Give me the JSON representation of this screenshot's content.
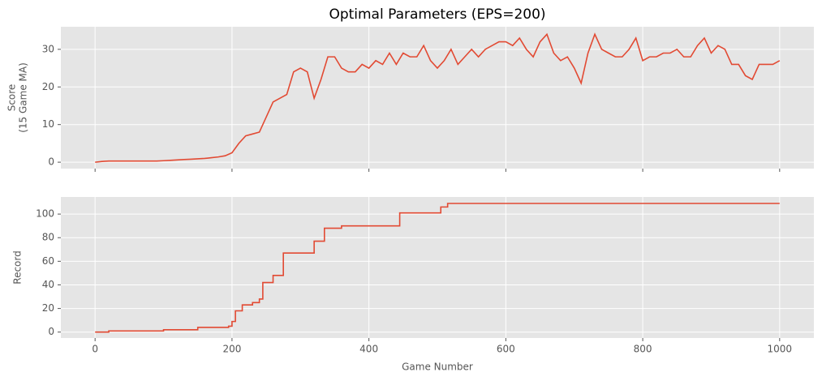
{
  "chart_data": [
    {
      "type": "line",
      "title": "Optimal Parameters (EPS=200)",
      "ylabel": [
        "Score",
        "(15 Game MA)"
      ],
      "x": [
        0,
        10,
        20,
        30,
        40,
        50,
        60,
        70,
        80,
        90,
        100,
        110,
        120,
        130,
        140,
        150,
        160,
        170,
        180,
        190,
        200,
        210,
        220,
        230,
        240,
        250,
        260,
        270,
        280,
        290,
        300,
        310,
        320,
        330,
        340,
        350,
        360,
        370,
        380,
        390,
        400,
        410,
        420,
        430,
        440,
        450,
        460,
        470,
        480,
        490,
        500,
        510,
        520,
        530,
        540,
        550,
        560,
        570,
        580,
        590,
        600,
        610,
        620,
        630,
        640,
        650,
        660,
        670,
        680,
        690,
        700,
        710,
        720,
        730,
        740,
        750,
        760,
        770,
        780,
        790,
        800,
        810,
        820,
        830,
        840,
        850,
        860,
        870,
        880,
        890,
        900,
        910,
        920,
        930,
        940,
        950,
        960,
        970,
        980,
        990,
        1000
      ],
      "series": [
        {
          "color": "#e24a33",
          "values": [
            0,
            0.2,
            0.3,
            0.3,
            0.3,
            0.3,
            0.3,
            0.3,
            0.3,
            0.3,
            0.4,
            0.5,
            0.6,
            0.7,
            0.8,
            0.9,
            1.0,
            1.2,
            1.4,
            1.7,
            2.5,
            5,
            7,
            7.5,
            8,
            12,
            16,
            17,
            18,
            24,
            25,
            24,
            17,
            22,
            28,
            28,
            25,
            24,
            24,
            26,
            25,
            27,
            26,
            29,
            26,
            29,
            28,
            28,
            31,
            27,
            25,
            27,
            30,
            26,
            28,
            30,
            28,
            30,
            31,
            32,
            32,
            31,
            33,
            30,
            28,
            32,
            34,
            29,
            27,
            28,
            25,
            21,
            29,
            34,
            30,
            29,
            28,
            28,
            30,
            33,
            27,
            28,
            28,
            29,
            29,
            30,
            28,
            28,
            31,
            33,
            29,
            31,
            30,
            26,
            26,
            23,
            22,
            26,
            26,
            26,
            27
          ]
        }
      ],
      "xlim": [
        -50,
        1050
      ],
      "ylim": [
        -1.7,
        36
      ],
      "xticks": [
        0,
        200,
        400,
        600,
        800,
        1000
      ],
      "yticks": [
        0,
        10,
        20,
        30
      ],
      "grid": true,
      "step": false
    },
    {
      "type": "line",
      "ylabel": [
        "Record"
      ],
      "xlabel": "Game Number",
      "x": [
        0,
        20,
        100,
        150,
        195,
        200,
        205,
        215,
        230,
        240,
        245,
        260,
        275,
        320,
        335,
        360,
        440,
        445,
        500,
        505,
        515,
        1000
      ],
      "series": [
        {
          "color": "#e24a33",
          "values": [
            0,
            1,
            2,
            4,
            5,
            9,
            18,
            23,
            25,
            28,
            42,
            48,
            67,
            77,
            88,
            90,
            90,
            101,
            101,
            106,
            109,
            109
          ]
        }
      ],
      "xlim": [
        -50,
        1050
      ],
      "ylim": [
        -5,
        114.5
      ],
      "xticks": [
        0,
        200,
        400,
        600,
        800,
        1000
      ],
      "yticks": [
        0,
        20,
        40,
        60,
        80,
        100
      ],
      "grid": true,
      "step": true
    }
  ]
}
